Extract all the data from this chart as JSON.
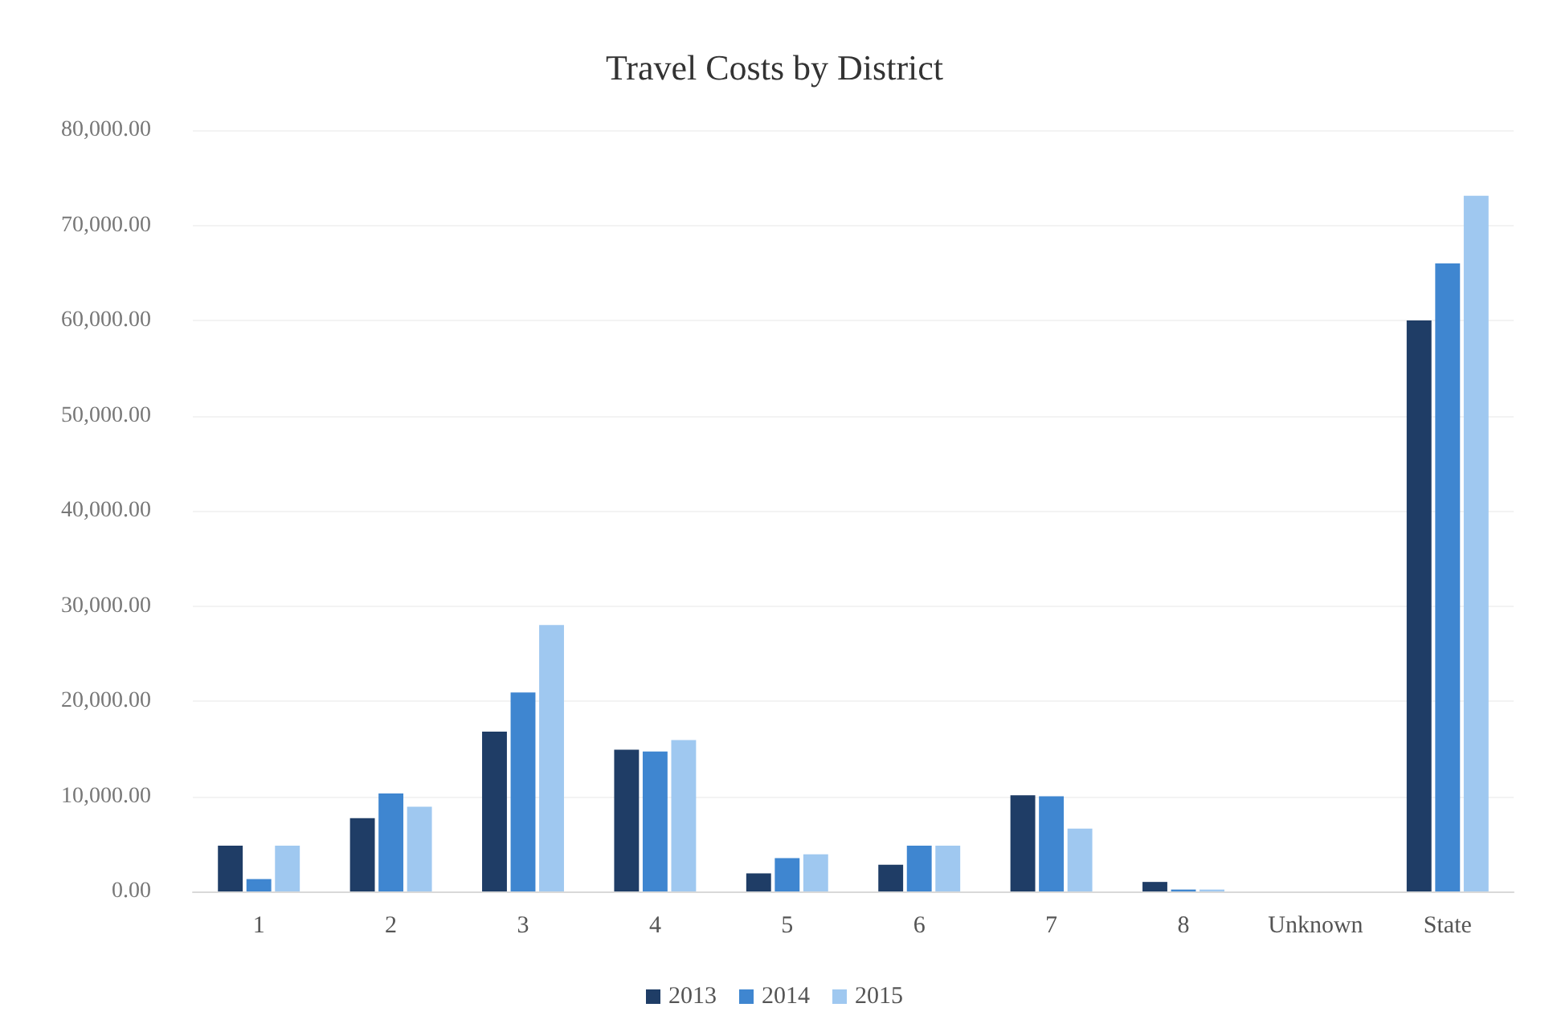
{
  "chart_data": {
    "type": "bar",
    "title": "Travel Costs by District",
    "categories": [
      "1",
      "2",
      "3",
      "4",
      "5",
      "6",
      "7",
      "8",
      "Unknown",
      "State"
    ],
    "series": [
      {
        "name": "2013",
        "color": "#1f3d66",
        "values": [
          4800,
          7700,
          16800,
          14900,
          1900,
          2800,
          10100,
          1000,
          0,
          60000
        ]
      },
      {
        "name": "2014",
        "color": "#3f86d0",
        "values": [
          1300,
          10300,
          20900,
          14700,
          3500,
          4800,
          10000,
          200,
          0,
          66000
        ]
      },
      {
        "name": "2015",
        "color": "#9fc8f0",
        "values": [
          4800,
          8900,
          28000,
          15900,
          3900,
          4800,
          6600,
          200,
          0,
          73100
        ]
      }
    ],
    "ylim": [
      0,
      80000
    ],
    "yticks": [
      {
        "value": 0,
        "label": "0.00"
      },
      {
        "value": 10000,
        "label": "10,000.00"
      },
      {
        "value": 20000,
        "label": "20,000.00"
      },
      {
        "value": 30000,
        "label": "30,000.00"
      },
      {
        "value": 40000,
        "label": "40,000.00"
      },
      {
        "value": 50000,
        "label": "50,000.00"
      },
      {
        "value": 60000,
        "label": "60,000.00"
      },
      {
        "value": 70000,
        "label": "70,000.00"
      },
      {
        "value": 80000,
        "label": "80,000.00"
      }
    ],
    "grid": "y",
    "legend": "bottom"
  }
}
